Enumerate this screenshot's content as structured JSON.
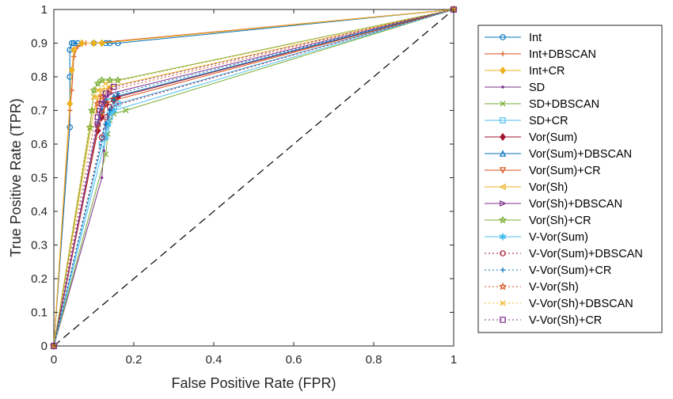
{
  "chart_data": {
    "type": "line",
    "title": "",
    "xlabel": "False Positive Rate (FPR)",
    "ylabel": "True Positive Rate (TPR)",
    "xlim": [
      0,
      1
    ],
    "ylim": [
      0,
      1
    ],
    "xticks": [
      0,
      0.2,
      0.4,
      0.6,
      0.8,
      1
    ],
    "yticks": [
      0,
      0.1,
      0.2,
      0.3,
      0.4,
      0.5,
      0.6,
      0.7,
      0.8,
      0.9,
      1
    ],
    "xtick_labels": [
      "0",
      "0.2",
      "0.4",
      "0.6",
      "0.8",
      "1"
    ],
    "ytick_labels": [
      "0",
      "0.1",
      "0.2",
      "0.3",
      "0.4",
      "0.5",
      "0.6",
      "0.7",
      "0.8",
      "0.9",
      "1"
    ],
    "grid": false,
    "legend_position": "outside-right",
    "reference_line": {
      "style": "dashed",
      "color": "#000000",
      "x": [
        0,
        1
      ],
      "y": [
        0,
        1
      ]
    },
    "series": [
      {
        "name": "Int",
        "color": "#0072BD",
        "line": "solid",
        "marker": "circle",
        "x": [
          0,
          0.04,
          0.04,
          0.04,
          0.045,
          0.05,
          0.06,
          0.1,
          0.13,
          0.14,
          0.16,
          1
        ],
        "y": [
          0,
          0.65,
          0.8,
          0.88,
          0.9,
          0.9,
          0.9,
          0.9,
          0.9,
          0.9,
          0.9,
          1
        ]
      },
      {
        "name": "Int+DBSCAN",
        "color": "#D95319",
        "line": "solid",
        "marker": "plus",
        "x": [
          0,
          0.04,
          0.045,
          0.05,
          0.06,
          0.08,
          0.1,
          1
        ],
        "y": [
          0,
          0.7,
          0.76,
          0.86,
          0.89,
          0.9,
          0.9,
          1
        ]
      },
      {
        "name": "Int+CR",
        "color": "#EDB120",
        "line": "solid",
        "marker": "diamond",
        "x": [
          0,
          0.04,
          0.045,
          0.05,
          0.07,
          0.1,
          0.12,
          1
        ],
        "y": [
          0,
          0.72,
          0.82,
          0.88,
          0.9,
          0.9,
          0.9,
          1
        ]
      },
      {
        "name": "SD",
        "color": "#7E2F8E",
        "line": "solid",
        "marker": "point",
        "x": [
          0,
          0.12,
          0.125,
          0.13,
          0.14,
          0.16,
          1
        ],
        "y": [
          0,
          0.5,
          0.58,
          0.65,
          0.7,
          0.72,
          1
        ]
      },
      {
        "name": "SD+DBSCAN",
        "color": "#77AC30",
        "line": "solid",
        "marker": "x",
        "x": [
          0,
          0.13,
          0.135,
          0.14,
          0.15,
          0.18,
          1
        ],
        "y": [
          0,
          0.57,
          0.63,
          0.67,
          0.69,
          0.7,
          1
        ]
      },
      {
        "name": "SD+CR",
        "color": "#4DBEEE",
        "line": "solid",
        "marker": "square",
        "x": [
          0,
          0.12,
          0.125,
          0.13,
          0.135,
          0.14,
          0.145,
          0.15,
          0.16,
          1
        ],
        "y": [
          0,
          0.6,
          0.62,
          0.64,
          0.66,
          0.68,
          0.7,
          0.71,
          0.72,
          1
        ]
      },
      {
        "name": "Vor(Sum)",
        "color": "#A2142F",
        "line": "solid",
        "marker": "diamond",
        "x": [
          0,
          0.11,
          0.12,
          0.13,
          0.15,
          0.16,
          1
        ],
        "y": [
          0,
          0.64,
          0.68,
          0.72,
          0.73,
          0.74,
          1
        ]
      },
      {
        "name": "Vor(Sum)+DBSCAN",
        "color": "#0072BD",
        "line": "solid",
        "marker": "triangle-up",
        "x": [
          0,
          0.11,
          0.12,
          0.13,
          0.15,
          1
        ],
        "y": [
          0,
          0.66,
          0.7,
          0.73,
          0.74,
          1
        ]
      },
      {
        "name": "Vor(Sum)+CR",
        "color": "#D95319",
        "line": "solid",
        "marker": "triangle-down",
        "x": [
          0,
          0.11,
          0.12,
          0.13,
          0.15,
          1
        ],
        "y": [
          0,
          0.65,
          0.69,
          0.72,
          0.73,
          1
        ]
      },
      {
        "name": "Vor(Sh)",
        "color": "#EDB120",
        "line": "solid",
        "marker": "triangle-left",
        "x": [
          0,
          0.1,
          0.11,
          0.12,
          0.14,
          1
        ],
        "y": [
          0,
          0.7,
          0.74,
          0.76,
          0.77,
          1
        ]
      },
      {
        "name": "Vor(Sh)+DBSCAN",
        "color": "#7E2F8E",
        "line": "solid",
        "marker": "triangle-right",
        "x": [
          0,
          0.11,
          0.115,
          0.12,
          0.13,
          0.14,
          1
        ],
        "y": [
          0,
          0.66,
          0.7,
          0.72,
          0.74,
          0.75,
          1
        ]
      },
      {
        "name": "Vor(Sh)+CR",
        "color": "#77AC30",
        "line": "solid",
        "marker": "star",
        "x": [
          0,
          0.09,
          0.095,
          0.1,
          0.11,
          0.12,
          0.14,
          0.16,
          1
        ],
        "y": [
          0,
          0.65,
          0.7,
          0.76,
          0.78,
          0.79,
          0.79,
          0.79,
          1
        ]
      },
      {
        "name": "V-Vor(Sum)",
        "color": "#4DBEEE",
        "line": "solid",
        "marker": "hexagram",
        "x": [
          0,
          0.13,
          0.135,
          0.14,
          0.15,
          1
        ],
        "y": [
          0,
          0.62,
          0.66,
          0.69,
          0.7,
          1
        ]
      },
      {
        "name": "V-Vor(Sum)+DBSCAN",
        "color": "#A2142F",
        "line": "dotted",
        "marker": "circle",
        "x": [
          0,
          0.12,
          0.13,
          0.14,
          1
        ],
        "y": [
          0,
          0.62,
          0.68,
          0.71,
          1
        ]
      },
      {
        "name": "V-Vor(Sum)+CR",
        "color": "#0072BD",
        "line": "dotted",
        "marker": "plus",
        "x": [
          0,
          0.13,
          0.14,
          0.15,
          0.16,
          1
        ],
        "y": [
          0,
          0.66,
          0.7,
          0.73,
          0.75,
          1
        ]
      },
      {
        "name": "V-Vor(Sh)",
        "color": "#D95319",
        "line": "dotted",
        "marker": "star",
        "x": [
          0,
          0.11,
          0.12,
          0.14,
          1
        ],
        "y": [
          0,
          0.72,
          0.74,
          0.76,
          1
        ]
      },
      {
        "name": "V-Vor(Sh)+DBSCAN",
        "color": "#EDB120",
        "line": "dotted",
        "marker": "x",
        "x": [
          0,
          0.1,
          0.11,
          0.13,
          1
        ],
        "y": [
          0,
          0.74,
          0.76,
          0.78,
          1
        ]
      },
      {
        "name": "V-Vor(Sh)+CR",
        "color": "#7E2F8E",
        "line": "dotted",
        "marker": "square",
        "x": [
          0,
          0.11,
          0.12,
          0.13,
          0.15,
          1
        ],
        "y": [
          0,
          0.68,
          0.72,
          0.75,
          0.77,
          1
        ]
      }
    ]
  }
}
